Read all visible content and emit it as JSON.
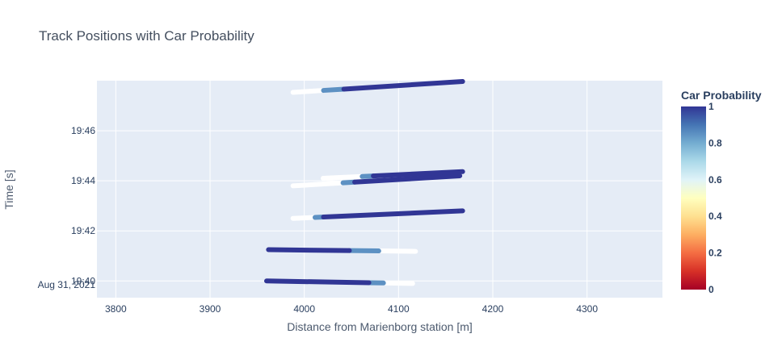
{
  "chart_data": {
    "type": "scatter",
    "title": "Track Positions with Car Probability",
    "xlabel": "Distance from Marienborg station [m]",
    "ylabel": "Time [s]",
    "xlim": [
      3780,
      4380
    ],
    "ylim": [
      "19:39:20",
      "19:48:00"
    ],
    "x_ticks": [
      3800,
      3900,
      4000,
      4100,
      4200,
      4300
    ],
    "x_tick_labels": [
      "3800",
      "3900",
      "4000",
      "4100",
      "4200",
      "4300"
    ],
    "y_ticks": [
      "19:40:00",
      "19:42:00",
      "19:44:00",
      "19:46:00"
    ],
    "y_tick_labels": [
      "19:40",
      "19:42",
      "19:44",
      "19:46"
    ],
    "y_tick_sublabel": "Aug 31, 2021",
    "grid": true,
    "colorscale": "RdYlBu",
    "colorbar": {
      "title": "Car Probability",
      "range": [
        0,
        1
      ],
      "ticks": [
        0,
        0.2,
        0.4,
        0.6,
        0.8,
        1
      ],
      "tick_labels": [
        "0",
        "0.2",
        "0.4",
        "0.6",
        "0.8",
        "1"
      ]
    },
    "tracks": [
      {
        "x_start": 4115,
        "x_end": 3960,
        "t_start": "19:39:54",
        "t_end": "19:40:00",
        "probability_segments": [
          {
            "from": 0,
            "to": 0.2,
            "p": 0.6
          },
          {
            "from": 0.2,
            "to": 0.3,
            "p": 0.85
          },
          {
            "from": 0.3,
            "to": 1,
            "p": 1
          }
        ]
      },
      {
        "x_start": 4118,
        "x_end": 3962,
        "t_start": "19:41:11",
        "t_end": "19:41:15",
        "probability_segments": [
          {
            "from": 0,
            "to": 0.25,
            "p": 0.6
          },
          {
            "from": 0.25,
            "to": 0.45,
            "p": 0.85
          },
          {
            "from": 0.45,
            "to": 1,
            "p": 1
          }
        ]
      },
      {
        "x_start": 3988,
        "x_end": 4168,
        "t_start": "19:42:30",
        "t_end": "19:42:48",
        "probability_segments": [
          {
            "from": 0,
            "to": 0.13,
            "p": 0.6
          },
          {
            "from": 0.13,
            "to": 0.18,
            "p": 0.85
          },
          {
            "from": 0.18,
            "to": 1,
            "p": 1
          }
        ]
      },
      {
        "x_start": 3988,
        "x_end": 4165,
        "t_start": "19:43:48",
        "t_end": "19:44:12",
        "probability_segments": [
          {
            "from": 0,
            "to": 0.3,
            "p": 0.6
          },
          {
            "from": 0.3,
            "to": 0.37,
            "p": 0.85
          },
          {
            "from": 0.37,
            "to": 1,
            "p": 1
          }
        ]
      },
      {
        "x_start": 4020,
        "x_end": 4168,
        "t_start": "19:44:06",
        "t_end": "19:44:22",
        "probability_segments": [
          {
            "from": 0,
            "to": 0.28,
            "p": 0.6
          },
          {
            "from": 0.28,
            "to": 0.36,
            "p": 0.85
          },
          {
            "from": 0.36,
            "to": 1,
            "p": 1
          }
        ]
      },
      {
        "x_start": 3988,
        "x_end": 4168,
        "t_start": "19:47:32",
        "t_end": "19:47:58",
        "probability_segments": [
          {
            "from": 0,
            "to": 0.18,
            "p": 0.6
          },
          {
            "from": 0.18,
            "to": 0.3,
            "p": 0.85
          },
          {
            "from": 0.3,
            "to": 1,
            "p": 1
          }
        ]
      }
    ]
  }
}
